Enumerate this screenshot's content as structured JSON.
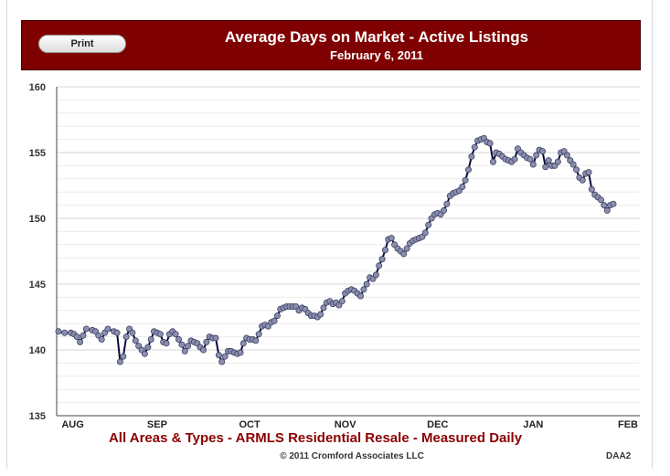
{
  "header": {
    "print_label": "Print",
    "title": "Average Days on Market - Active Listings",
    "subtitle": "February 6, 2011"
  },
  "footer": {
    "main": "All Areas & Types - ARMLS Residential Resale - Measured Daily",
    "copyright": "© 2011 Cromford Associates LLC",
    "code": "DAA2"
  },
  "colors": {
    "header_bg": "#7f0000",
    "line": "#0b0b3a",
    "marker": "#8a8fb0",
    "footer_text": "#8b0000"
  },
  "chart_data": {
    "type": "line",
    "title": "Average Days on Market - Active Listings",
    "subtitle": "February 6, 2011",
    "ylim": [
      135,
      160
    ],
    "yticks": [
      135,
      140,
      145,
      150,
      155,
      160
    ],
    "grid": true,
    "x_month_labels": [
      "AUG",
      "SEP",
      "OCT",
      "NOV",
      "DEC",
      "JAN",
      "FEB"
    ],
    "x_month_positions": [
      1,
      32,
      62,
      93,
      123,
      154,
      185
    ],
    "xlim": [
      0,
      188
    ],
    "series": [
      {
        "points": [
          [
            0,
            141.4
          ],
          [
            2,
            141.3
          ],
          [
            4,
            141.3
          ],
          [
            5,
            141.2
          ],
          [
            6,
            141.0
          ],
          [
            7,
            140.6
          ],
          [
            8,
            141.1
          ],
          [
            9,
            141.6
          ],
          [
            11,
            141.5
          ],
          [
            12,
            141.4
          ],
          [
            13,
            141.1
          ],
          [
            14,
            140.8
          ],
          [
            15,
            141.3
          ],
          [
            16,
            141.6
          ],
          [
            18,
            141.4
          ],
          [
            19,
            141.3
          ],
          [
            20,
            139.1
          ],
          [
            21,
            139.5
          ],
          [
            22,
            141.0
          ],
          [
            23,
            141.6
          ],
          [
            24,
            141.3
          ],
          [
            25,
            140.7
          ],
          [
            26,
            140.3
          ],
          [
            27,
            140.0
          ],
          [
            28,
            139.7
          ],
          [
            29,
            140.2
          ],
          [
            30,
            140.8
          ],
          [
            31,
            141.4
          ],
          [
            32,
            141.3
          ],
          [
            33,
            141.2
          ],
          [
            34,
            140.6
          ],
          [
            35,
            140.5
          ],
          [
            36,
            141.2
          ],
          [
            37,
            141.4
          ],
          [
            38,
            141.2
          ],
          [
            39,
            140.8
          ],
          [
            40,
            140.4
          ],
          [
            41,
            139.9
          ],
          [
            42,
            140.3
          ],
          [
            43,
            140.7
          ],
          [
            44,
            140.6
          ],
          [
            45,
            140.5
          ],
          [
            46,
            140.2
          ],
          [
            47,
            140.0
          ],
          [
            48,
            140.6
          ],
          [
            49,
            141.0
          ],
          [
            50,
            140.9
          ],
          [
            51,
            140.9
          ],
          [
            52,
            139.6
          ],
          [
            53,
            139.1
          ],
          [
            54,
            139.5
          ],
          [
            55,
            139.9
          ],
          [
            56,
            139.9
          ],
          [
            57,
            139.8
          ],
          [
            58,
            139.7
          ],
          [
            59,
            139.8
          ],
          [
            60,
            140.5
          ],
          [
            61,
            140.9
          ],
          [
            62,
            140.8
          ],
          [
            63,
            140.8
          ],
          [
            64,
            140.7
          ],
          [
            65,
            141.2
          ],
          [
            66,
            141.8
          ],
          [
            67,
            141.9
          ],
          [
            68,
            141.8
          ],
          [
            69,
            142.1
          ],
          [
            70,
            142.2
          ],
          [
            71,
            142.6
          ],
          [
            72,
            143.1
          ],
          [
            73,
            143.2
          ],
          [
            74,
            143.3
          ],
          [
            75,
            143.3
          ],
          [
            76,
            143.3
          ],
          [
            77,
            143.3
          ],
          [
            78,
            143.0
          ],
          [
            79,
            143.2
          ],
          [
            80,
            143.1
          ],
          [
            81,
            142.8
          ],
          [
            82,
            142.6
          ],
          [
            83,
            142.6
          ],
          [
            84,
            142.5
          ],
          [
            85,
            142.7
          ],
          [
            86,
            143.2
          ],
          [
            87,
            143.6
          ],
          [
            88,
            143.7
          ],
          [
            89,
            143.5
          ],
          [
            90,
            143.6
          ],
          [
            91,
            143.4
          ],
          [
            92,
            143.7
          ],
          [
            93,
            144.3
          ],
          [
            94,
            144.5
          ],
          [
            95,
            144.6
          ],
          [
            96,
            144.5
          ],
          [
            97,
            144.3
          ],
          [
            98,
            144.1
          ],
          [
            99,
            144.6
          ],
          [
            100,
            145.0
          ],
          [
            101,
            145.5
          ],
          [
            102,
            145.4
          ],
          [
            103,
            145.7
          ],
          [
            104,
            146.4
          ],
          [
            105,
            146.9
          ],
          [
            106,
            147.6
          ],
          [
            107,
            148.4
          ],
          [
            108,
            148.5
          ],
          [
            109,
            148.0
          ],
          [
            110,
            147.7
          ],
          [
            111,
            147.5
          ],
          [
            112,
            147.3
          ],
          [
            113,
            147.7
          ],
          [
            114,
            148.1
          ],
          [
            115,
            148.3
          ],
          [
            116,
            148.4
          ],
          [
            117,
            148.5
          ],
          [
            118,
            148.6
          ],
          [
            119,
            148.9
          ],
          [
            120,
            149.5
          ],
          [
            121,
            150.0
          ],
          [
            122,
            150.3
          ],
          [
            123,
            150.4
          ],
          [
            124,
            150.3
          ],
          [
            125,
            150.6
          ],
          [
            126,
            151.1
          ],
          [
            127,
            151.7
          ],
          [
            128,
            151.9
          ],
          [
            129,
            152.0
          ],
          [
            130,
            152.1
          ],
          [
            131,
            152.4
          ],
          [
            132,
            152.9
          ],
          [
            133,
            153.7
          ],
          [
            134,
            154.7
          ],
          [
            135,
            155.4
          ],
          [
            136,
            155.9
          ],
          [
            137,
            156.0
          ],
          [
            138,
            156.1
          ],
          [
            139,
            155.8
          ],
          [
            140,
            155.7
          ],
          [
            141,
            154.3
          ],
          [
            142,
            155.0
          ],
          [
            143,
            154.9
          ],
          [
            144,
            154.7
          ],
          [
            145,
            154.5
          ],
          [
            146,
            154.4
          ],
          [
            147,
            154.3
          ],
          [
            148,
            154.5
          ],
          [
            149,
            155.3
          ],
          [
            150,
            155.0
          ],
          [
            151,
            154.8
          ],
          [
            152,
            154.6
          ],
          [
            153,
            154.5
          ],
          [
            154,
            154.1
          ],
          [
            155,
            154.8
          ],
          [
            156,
            155.2
          ],
          [
            157,
            155.1
          ],
          [
            158,
            153.9
          ],
          [
            159,
            154.4
          ],
          [
            160,
            154.0
          ],
          [
            161,
            154.0
          ],
          [
            162,
            154.3
          ],
          [
            163,
            155.0
          ],
          [
            164,
            155.1
          ],
          [
            165,
            154.8
          ],
          [
            166,
            154.4
          ],
          [
            167,
            154.1
          ],
          [
            168,
            153.7
          ],
          [
            169,
            153.1
          ],
          [
            170,
            152.9
          ],
          [
            171,
            153.4
          ],
          [
            172,
            153.5
          ],
          [
            173,
            152.2
          ],
          [
            174,
            151.8
          ],
          [
            175,
            151.6
          ],
          [
            176,
            151.4
          ],
          [
            177,
            151.0
          ],
          [
            178,
            150.6
          ],
          [
            179,
            151.0
          ],
          [
            180,
            151.1
          ]
        ]
      }
    ]
  }
}
